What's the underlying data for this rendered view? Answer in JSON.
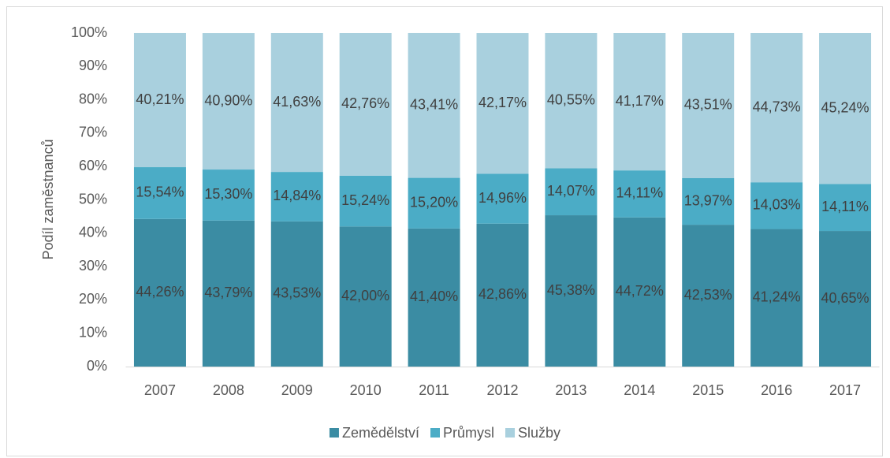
{
  "chart_data": {
    "type": "stacked_bar",
    "y_label": "Podíl zaměstnanců",
    "categories": [
      "2007",
      "2008",
      "2009",
      "2010",
      "2011",
      "2012",
      "2013",
      "2014",
      "2015",
      "2016",
      "2017"
    ],
    "series": [
      {
        "name": "Zemědělství",
        "color": "#3b8ca3",
        "values": [
          44.26,
          43.79,
          43.53,
          42.0,
          41.4,
          42.86,
          45.38,
          44.72,
          42.53,
          41.24,
          40.65
        ],
        "value_labels": [
          "44,26%",
          "43,79%",
          "43,53%",
          "42,00%",
          "41,40%",
          "42,86%",
          "45,38%",
          "44,72%",
          "42,53%",
          "41,24%",
          "40,65%"
        ]
      },
      {
        "name": "Průmysl",
        "color": "#4bacc6",
        "values": [
          15.54,
          15.3,
          14.84,
          15.24,
          15.2,
          14.96,
          14.07,
          14.11,
          13.97,
          14.03,
          14.11
        ],
        "value_labels": [
          "15,54%",
          "15,30%",
          "14,84%",
          "15,24%",
          "15,20%",
          "14,96%",
          "14,07%",
          "14,11%",
          "13,97%",
          "14,03%",
          "14,11%"
        ]
      },
      {
        "name": "Služby",
        "color": "#a9d0de",
        "values": [
          40.21,
          40.9,
          41.63,
          42.76,
          43.41,
          42.17,
          40.55,
          41.17,
          43.51,
          44.73,
          45.24
        ],
        "value_labels": [
          "40,21%",
          "40,90%",
          "41,63%",
          "42,76%",
          "43,41%",
          "42,17%",
          "40,55%",
          "41,17%",
          "43,51%",
          "44,73%",
          "45,24%"
        ]
      }
    ],
    "ylim": [
      0,
      100
    ],
    "yticks": [
      {
        "value": 0,
        "label": "0%"
      },
      {
        "value": 10,
        "label": "10%"
      },
      {
        "value": 20,
        "label": "20%"
      },
      {
        "value": 30,
        "label": "30%"
      },
      {
        "value": 40,
        "label": "40%"
      },
      {
        "value": 50,
        "label": "50%"
      },
      {
        "value": 60,
        "label": "60%"
      },
      {
        "value": 70,
        "label": "70%"
      },
      {
        "value": 80,
        "label": "80%"
      },
      {
        "value": 90,
        "label": "90%"
      },
      {
        "value": 100,
        "label": "100%"
      }
    ],
    "grid": false,
    "legend": "bottom"
  }
}
